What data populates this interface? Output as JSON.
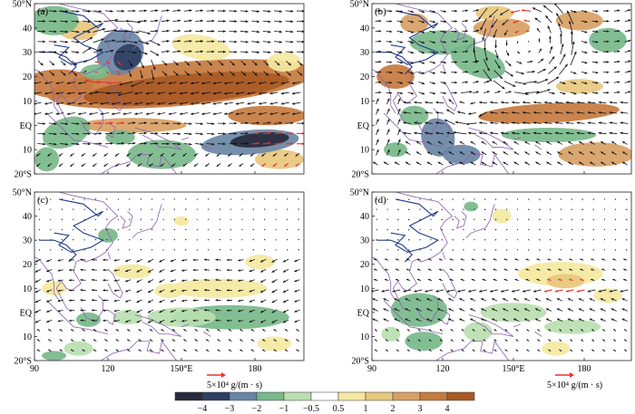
{
  "panels": [
    {
      "id": "a",
      "label": "(a)"
    },
    {
      "id": "b",
      "label": "(b)"
    },
    {
      "id": "c",
      "label": "(c)"
    },
    {
      "id": "d",
      "label": "(d)"
    }
  ],
  "lat_ticks": [
    {
      "lat": 50,
      "label": "50°N"
    },
    {
      "lat": 40,
      "label": "40"
    },
    {
      "lat": 30,
      "label": "30"
    },
    {
      "lat": 20,
      "label": "20"
    },
    {
      "lat": 10,
      "label": "10"
    },
    {
      "lat": 0,
      "label": "EQ"
    },
    {
      "lat": -10,
      "label": "10"
    },
    {
      "lat": -20,
      "label": "20°S"
    }
  ],
  "lon_ticks": [
    {
      "lon": 90,
      "label": "90"
    },
    {
      "lon": 120,
      "label": "120"
    },
    {
      "lon": 150,
      "label": "150°E"
    },
    {
      "lon": 180,
      "label": "180"
    }
  ],
  "extent": {
    "lon_min": 90,
    "lon_max": 200,
    "lat_min": -20,
    "lat_max": 50
  },
  "reference_vector": {
    "label": "5×10⁴ g/(m · s)",
    "color": "#e8332a"
  },
  "colorbar": {
    "colors": [
      "#272b3c",
      "#2f3f63",
      "#6a85a4",
      "#78b88a",
      "#b9e0b0",
      "#ffffff",
      "#f5e8a0",
      "#e8c77e",
      "#d8a064",
      "#c57a3f",
      "#a95a25"
    ],
    "labels": [
      "−4",
      "−3",
      "−2",
      "−1",
      "−0.5",
      "0.5",
      "1",
      "2",
      "3",
      "4"
    ]
  },
  "legend_colors": {
    "vector": "#111111",
    "significant_vector": "#e8332a",
    "coastline": "#8a5fb0",
    "land_contour": "#223a8c"
  }
}
